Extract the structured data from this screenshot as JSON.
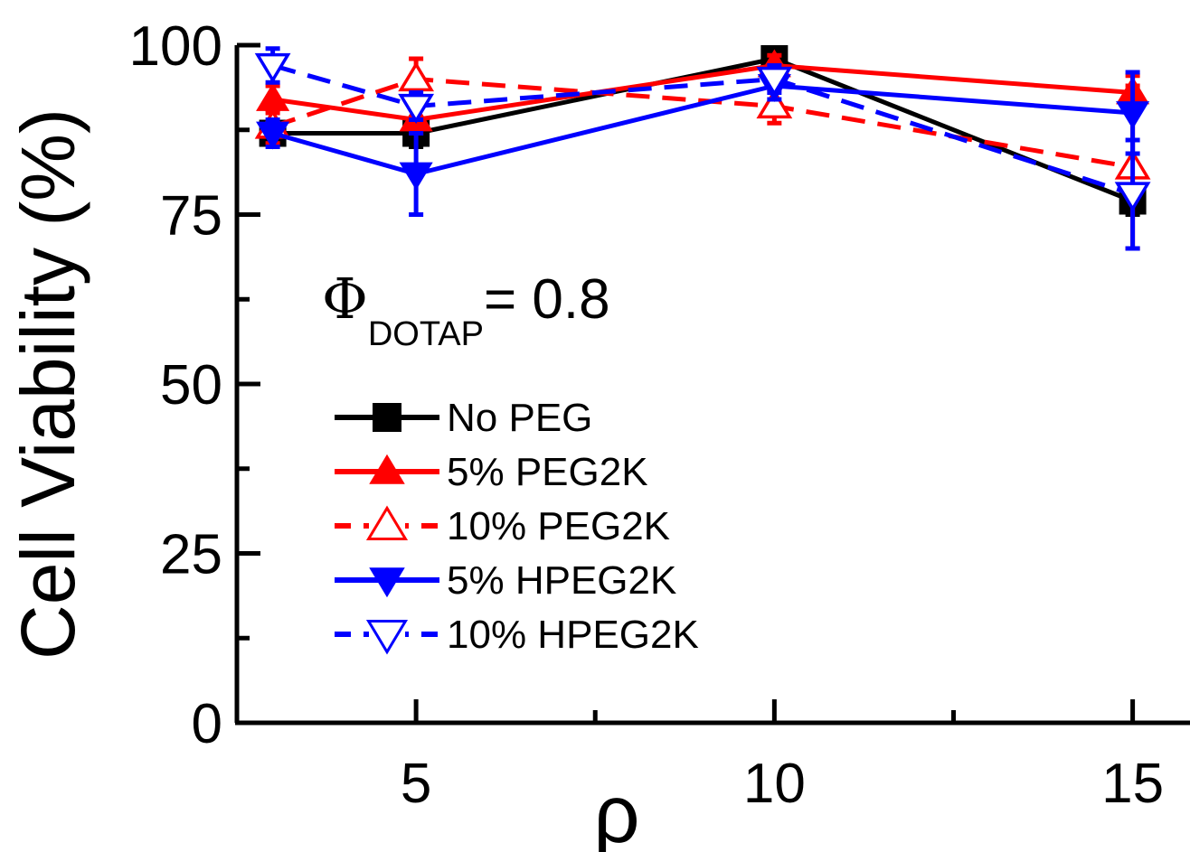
{
  "chart_data": {
    "type": "line",
    "xlabel": "ρ",
    "ylabel": "Cell Viability (%)",
    "x_ticks": [
      "5",
      "10",
      "15"
    ],
    "y_ticks": [
      "0",
      "25",
      "50",
      "75",
      "100"
    ],
    "xlim": [
      2.5,
      15.8
    ],
    "ylim": [
      0,
      100
    ],
    "grid": false,
    "legend_position": "lower-left",
    "annotation": {
      "symbol": "Φ",
      "subscript": "DOTAP",
      "text": "= 0.8"
    },
    "x": [
      3,
      5,
      10,
      15
    ],
    "series": [
      {
        "name": "No PEG",
        "values": [
          87,
          87,
          98,
          77
        ],
        "errors": [
          1.5,
          2,
          1.5,
          2
        ],
        "color": "#000000",
        "marker": "square",
        "filled": true,
        "dash": false
      },
      {
        "name": "5% PEG2K",
        "values": [
          92,
          89,
          97,
          93
        ],
        "errors": [
          2,
          2,
          1.5,
          2.5
        ],
        "color": "#ff0000",
        "marker": "triangle-up",
        "filled": true,
        "dash": false
      },
      {
        "name": "10% PEG2K",
        "values": [
          88,
          95,
          91,
          82
        ],
        "errors": [
          2.5,
          3,
          2.5,
          12
        ],
        "color": "#ff0000",
        "marker": "triangle-up",
        "filled": false,
        "dash": true
      },
      {
        "name": "5% HPEG2K",
        "values": [
          87,
          81,
          94,
          90
        ],
        "errors": [
          2,
          6,
          2,
          6
        ],
        "color": "#0000ff",
        "marker": "triangle-down",
        "filled": true,
        "dash": false
      },
      {
        "name": "10% HPEG2K",
        "values": [
          97,
          91,
          95,
          78
        ],
        "errors": [
          2.5,
          2,
          2,
          8
        ],
        "color": "#0000ff",
        "marker": "triangle-down",
        "filled": false,
        "dash": true
      }
    ]
  }
}
